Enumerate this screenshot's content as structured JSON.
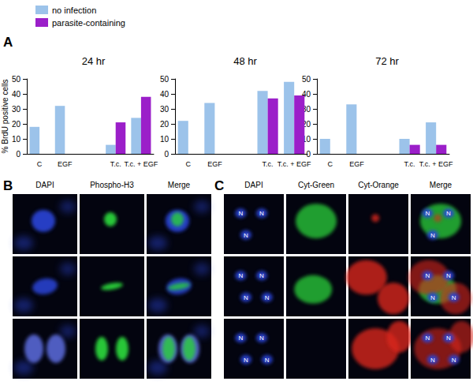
{
  "panel_labels": [
    "A",
    "B",
    "C"
  ],
  "chart_data": [
    {
      "type": "bar",
      "title": "24 hr",
      "categories": [
        "C",
        "EGF",
        null,
        "T.c.",
        "T.c. + EGF"
      ],
      "series": [
        {
          "name": "no infection",
          "color": "#9cc3ea",
          "values": [
            18,
            32,
            null,
            6,
            24
          ]
        },
        {
          "name": "parasite-containing",
          "color": "#9b1fc9",
          "values": [
            null,
            null,
            null,
            21,
            38
          ]
        }
      ],
      "ylabel": "% BrdU positive cells",
      "ylim": [
        0,
        50
      ],
      "yticks": [
        0,
        10,
        20,
        30,
        40,
        50
      ],
      "grid": false,
      "legend": "upper left"
    },
    {
      "type": "bar",
      "title": "48 hr",
      "categories": [
        "C",
        "EGF",
        null,
        "T.c.",
        "T.c. + EGF"
      ],
      "series": [
        {
          "name": "no infection",
          "color": "#9cc3ea",
          "values": [
            22,
            34,
            null,
            42,
            48
          ]
        },
        {
          "name": "parasite-containing",
          "color": "#9b1fc9",
          "values": [
            null,
            null,
            null,
            37,
            39
          ]
        }
      ],
      "ylim": [
        0,
        50
      ],
      "yticks": [
        0,
        10,
        20,
        30,
        40,
        50
      ],
      "grid": false
    },
    {
      "type": "bar",
      "title": "72 hr",
      "categories": [
        "C",
        "EGF",
        null,
        "T.c.",
        "T.c. + EGF"
      ],
      "series": [
        {
          "name": "no infection",
          "color": "#9cc3ea",
          "values": [
            10,
            33,
            null,
            10,
            21
          ]
        },
        {
          "name": "parasite-containing",
          "color": "#9b1fc9",
          "values": [
            null,
            null,
            null,
            6,
            6
          ]
        }
      ],
      "ylim": [
        0,
        50
      ],
      "yticks": [
        0,
        10,
        20,
        30,
        40,
        50
      ],
      "grid": false
    }
  ],
  "micrographs": {
    "B": {
      "columns": [
        "DAPI",
        "Phospho-H3",
        "Merge"
      ]
    },
    "C": {
      "columns": [
        "DAPI",
        "Cyt-Green",
        "Cyt-Orange",
        "Merge"
      ],
      "nuclei_labels": [
        [
          "N",
          "N",
          "N"
        ],
        [
          "N",
          "N",
          "N",
          "N"
        ],
        [
          "N",
          "N",
          "N",
          "N"
        ]
      ]
    }
  }
}
